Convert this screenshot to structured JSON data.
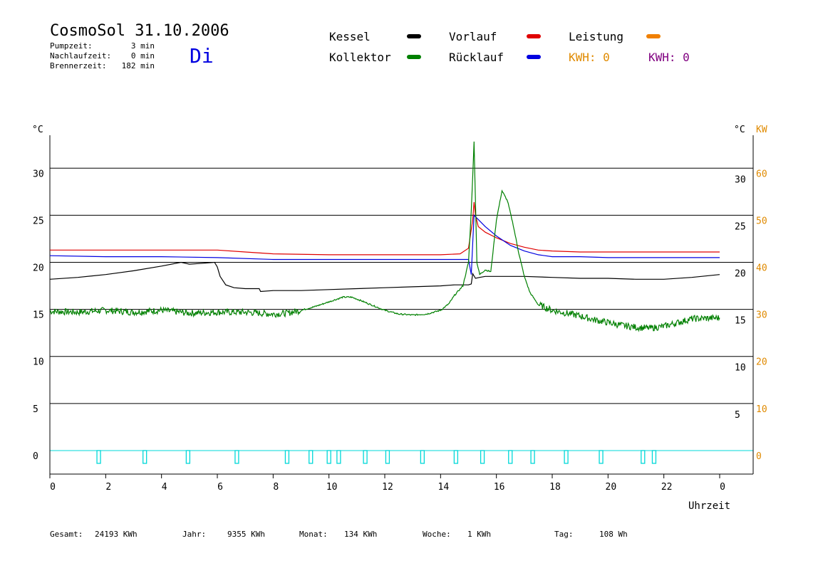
{
  "header": {
    "title": "CosmoSol 31.10.2006",
    "day": "Di",
    "info": [
      {
        "label": "Pumpzeit:",
        "value": "3 min"
      },
      {
        "label": "Nachlaufzeit:",
        "value": "0 min"
      },
      {
        "label": "Brennerzeit:",
        "value": "182 min"
      }
    ]
  },
  "legend": {
    "items": [
      {
        "label": "Kessel",
        "color": "#000000"
      },
      {
        "label": "Vorlauf",
        "color": "#e00000"
      },
      {
        "label": "Leistung",
        "color": "#f08000"
      },
      {
        "label": "Kollektor",
        "color": "#008000"
      },
      {
        "label": "Rücklauf",
        "color": "#0000e0"
      }
    ],
    "kwh1": "KWH: 0",
    "kwh1_color": "#e08a00",
    "kwh2": "KWH: 0",
    "kwh2_color": "#800080"
  },
  "footer": [
    {
      "label": "Gesamt:",
      "value": "24193 KWh"
    },
    {
      "label": "Jahr:",
      "value": "9355 KWh"
    },
    {
      "label": "Monat:",
      "value": "134 KWh"
    },
    {
      "label": "Woche:",
      "value": "1 KWh"
    },
    {
      "label": "Tag:",
      "value": "108 Wh"
    }
  ],
  "chart_data": {
    "type": "line",
    "xlabel": "Uhrzeit",
    "x_ticks": [
      "0",
      "2",
      "4",
      "6",
      "8",
      "10",
      "12",
      "14",
      "16",
      "18",
      "20",
      "22",
      "0"
    ],
    "xlim": [
      0,
      24
    ],
    "ylabel_left": "°C",
    "ylim_left": [
      -2.5,
      33.5
    ],
    "y_ticks_left": [
      0,
      5,
      10,
      15,
      20,
      25,
      30
    ],
    "ylabel_right": "°C",
    "y_ticks_right": [
      5,
      10,
      15,
      20,
      25,
      30
    ],
    "ylabel_right2": "KW",
    "y_ticks_right2": [
      0,
      10,
      20,
      30,
      40,
      50,
      60
    ],
    "grid_y": [
      0,
      5,
      10,
      15,
      20,
      25,
      30
    ],
    "series": [
      {
        "name": "Vorlauf",
        "color": "#e00000",
        "x": [
          0,
          2,
          4,
          6,
          7,
          8,
          10,
          12,
          14,
          14.7,
          15.0,
          15.15,
          15.2,
          15.25,
          15.35,
          15.6,
          16,
          16.5,
          17,
          17.5,
          18,
          19,
          20,
          22,
          24
        ],
        "y": [
          21.3,
          21.3,
          21.3,
          21.3,
          21.1,
          20.9,
          20.8,
          20.8,
          20.8,
          20.9,
          21.5,
          24.5,
          26.4,
          25.0,
          23.8,
          23.2,
          22.6,
          22.0,
          21.6,
          21.3,
          21.2,
          21.1,
          21.1,
          21.1,
          21.1
        ]
      },
      {
        "name": "Rücklauf",
        "color": "#0000e0",
        "x": [
          0,
          2,
          4,
          6,
          8,
          10,
          12,
          14,
          15.0,
          15.1,
          15.15,
          15.2,
          15.3,
          15.6,
          16,
          16.5,
          17,
          17.5,
          18,
          19,
          20,
          22,
          24
        ],
        "y": [
          20.7,
          20.6,
          20.6,
          20.5,
          20.3,
          20.3,
          20.3,
          20.3,
          20.3,
          18.7,
          22.0,
          25.0,
          24.7,
          23.8,
          22.8,
          21.8,
          21.2,
          20.8,
          20.6,
          20.6,
          20.5,
          20.5,
          20.5
        ]
      },
      {
        "name": "Kessel",
        "color": "#000000",
        "x": [
          0,
          1,
          2,
          3,
          4,
          4.7,
          5,
          5.5,
          5.9,
          6.0,
          6.1,
          6.3,
          6.6,
          7,
          7.5,
          7.55,
          8,
          9,
          10,
          11,
          12,
          13,
          14,
          14.5,
          15.0,
          15.1,
          15.15,
          15.25,
          15.4,
          15.6,
          16,
          17,
          18,
          19,
          20,
          21,
          22,
          23,
          24
        ],
        "y": [
          18.2,
          18.4,
          18.7,
          19.1,
          19.6,
          20.0,
          19.8,
          19.9,
          20.0,
          19.5,
          18.5,
          17.6,
          17.3,
          17.2,
          17.2,
          16.9,
          17.0,
          17.0,
          17.1,
          17.2,
          17.3,
          17.4,
          17.5,
          17.6,
          17.6,
          17.7,
          18.8,
          18.3,
          18.4,
          18.5,
          18.5,
          18.5,
          18.4,
          18.3,
          18.3,
          18.2,
          18.2,
          18.4,
          18.7
        ]
      },
      {
        "name": "Kollektor",
        "color": "#008000",
        "x": [
          0,
          1,
          2,
          3,
          4,
          5,
          6,
          7,
          8,
          8.5,
          9,
          9.5,
          10,
          10.5,
          10.8,
          11,
          11.5,
          12,
          12.5,
          13,
          13.5,
          14,
          14.3,
          14.5,
          14.8,
          15.0,
          15.1,
          15.2,
          15.3,
          15.4,
          15.6,
          15.8,
          16.0,
          16.2,
          16.4,
          16.6,
          16.8,
          17.0,
          17.2,
          17.5,
          18,
          18.5,
          19,
          19.5,
          20,
          20.5,
          21,
          21.5,
          22,
          22.5,
          23,
          24
        ],
        "y": [
          14.8,
          14.7,
          14.9,
          14.7,
          14.9,
          14.6,
          14.7,
          14.7,
          14.5,
          14.6,
          14.9,
          15.3,
          15.8,
          16.3,
          16.3,
          16.1,
          15.5,
          14.9,
          14.5,
          14.4,
          14.5,
          14.9,
          15.6,
          16.5,
          17.5,
          20.0,
          25.5,
          32.8,
          20.0,
          18.7,
          19.2,
          19.0,
          24.5,
          27.6,
          26.5,
          24.0,
          21.0,
          18.5,
          16.8,
          15.5,
          14.9,
          14.6,
          14.3,
          13.9,
          13.6,
          13.3,
          13.1,
          13.0,
          13.2,
          13.6,
          14.0,
          14.1
        ]
      }
    ],
    "pump_pulses": {
      "color": "#00d8d8",
      "x_hours": [
        1.75,
        3.4,
        4.95,
        6.7,
        8.5,
        9.35,
        10.0,
        10.35,
        11.3,
        12.1,
        13.35,
        14.55,
        15.5,
        16.5,
        17.3,
        18.5,
        19.75,
        21.25,
        21.65
      ]
    }
  }
}
